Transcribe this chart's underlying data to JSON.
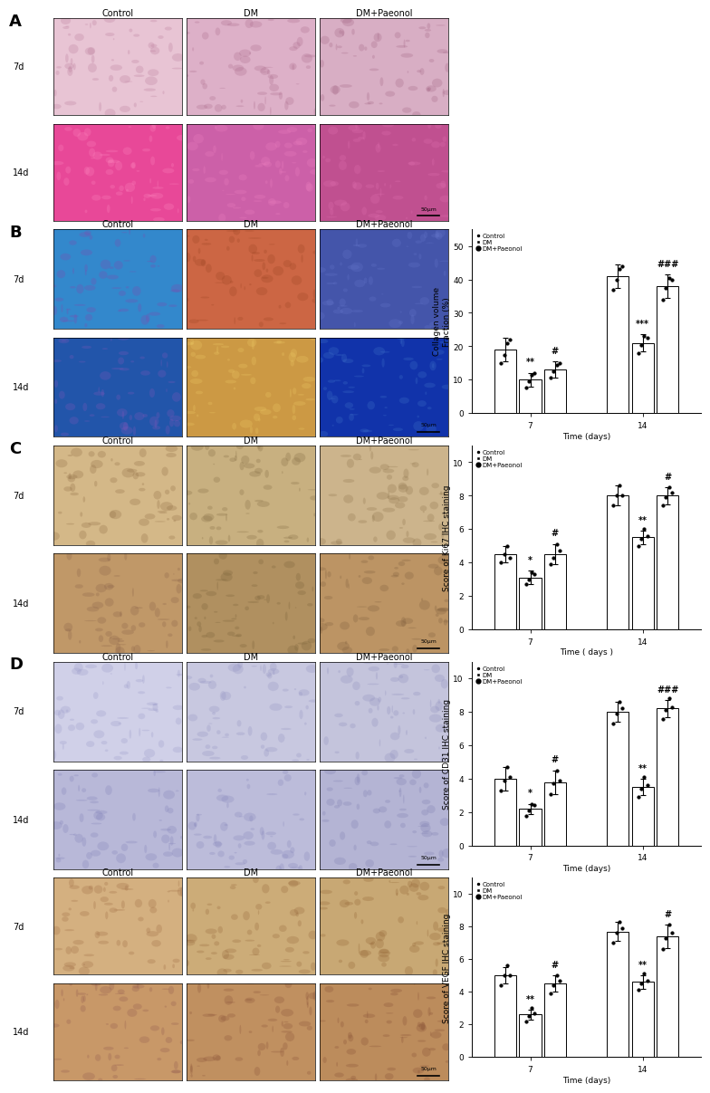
{
  "panel_labels": [
    "A",
    "B",
    "C",
    "D"
  ],
  "col_labels": [
    "Control",
    "DM",
    "DM+Paeonol"
  ],
  "row_labels_7d": "7d",
  "row_labels_14d": "14d",
  "legend_labels": [
    "Control",
    "DM",
    "DM+Paeonol"
  ],
  "panel_B_chart": {
    "ylabel": "Collagen volume\nFraction (%)",
    "xlabel": "Time (days)",
    "xticks": [
      7,
      14
    ],
    "yticks": [
      0,
      10,
      20,
      30,
      40,
      50
    ],
    "ylim": [
      0,
      55
    ],
    "bar_width": 0.22,
    "groups": {
      "7d": {
        "Control": {
          "mean": 19.0,
          "sem": 3.5
        },
        "DM": {
          "mean": 10.0,
          "sem": 2.0
        },
        "DM+Paeonol": {
          "mean": 13.0,
          "sem": 2.5
        }
      },
      "14d": {
        "Control": {
          "mean": 41.0,
          "sem": 3.5
        },
        "DM": {
          "mean": 21.0,
          "sem": 2.5
        },
        "DM+Paeonol": {
          "mean": 38.0,
          "sem": 3.5
        }
      }
    },
    "significance_7d": {
      "DM": "**",
      "DM+Paeonol": "#"
    },
    "significance_14d": {
      "DM": "***",
      "DM+Paeonol": "###"
    },
    "scatter_7d": {
      "Control": [
        15.0,
        17.5,
        21.0,
        22.0
      ],
      "DM": [
        7.5,
        9.5,
        11.5,
        12.0
      ],
      "DM+Paeonol": [
        10.5,
        12.5,
        14.5,
        15.0
      ]
    },
    "scatter_14d": {
      "Control": [
        37.0,
        40.0,
        43.0,
        44.0
      ],
      "DM": [
        18.0,
        20.5,
        23.0,
        22.5
      ],
      "DM+Paeonol": [
        34.0,
        37.5,
        40.5,
        40.0
      ]
    }
  },
  "panel_C_chart": {
    "ylabel": "Score of Ki67 IHC staining",
    "xlabel": "Time ( days )",
    "xticks": [
      7,
      14
    ],
    "yticks": [
      0,
      2,
      4,
      6,
      8,
      10
    ],
    "ylim": [
      0,
      11
    ],
    "bar_width": 0.22,
    "groups": {
      "7d": {
        "Control": {
          "mean": 4.5,
          "sem": 0.5
        },
        "DM": {
          "mean": 3.1,
          "sem": 0.4
        },
        "DM+Paeonol": {
          "mean": 4.5,
          "sem": 0.6
        }
      },
      "14d": {
        "Control": {
          "mean": 8.0,
          "sem": 0.6
        },
        "DM": {
          "mean": 5.5,
          "sem": 0.4
        },
        "DM+Paeonol": {
          "mean": 8.0,
          "sem": 0.5
        }
      }
    },
    "significance_7d": {
      "DM": "*",
      "DM+Paeonol": "#"
    },
    "significance_14d": {
      "DM": "**",
      "DM+Paeonol": "#"
    },
    "scatter_7d": {
      "Control": [
        4.0,
        4.5,
        5.0,
        4.3
      ],
      "DM": [
        2.7,
        3.0,
        3.4,
        3.3
      ],
      "DM+Paeonol": [
        3.9,
        4.3,
        5.1,
        4.7
      ]
    },
    "scatter_14d": {
      "Control": [
        7.4,
        8.0,
        8.6,
        8.0
      ],
      "DM": [
        5.0,
        5.4,
        6.0,
        5.6
      ],
      "DM+Paeonol": [
        7.4,
        7.9,
        8.5,
        8.2
      ]
    }
  },
  "panel_D1_chart": {
    "ylabel": "Score of CD31 IHC staining",
    "xlabel": "Time (days)",
    "xticks": [
      7,
      14
    ],
    "yticks": [
      0,
      2,
      4,
      6,
      8,
      10
    ],
    "ylim": [
      0,
      11
    ],
    "bar_width": 0.22,
    "groups": {
      "7d": {
        "Control": {
          "mean": 4.0,
          "sem": 0.7
        },
        "DM": {
          "mean": 2.2,
          "sem": 0.3
        },
        "DM+Paeonol": {
          "mean": 3.8,
          "sem": 0.7
        }
      },
      "14d": {
        "Control": {
          "mean": 8.0,
          "sem": 0.6
        },
        "DM": {
          "mean": 3.5,
          "sem": 0.5
        },
        "DM+Paeonol": {
          "mean": 8.2,
          "sem": 0.5
        }
      }
    },
    "significance_7d": {
      "DM": "*",
      "DM+Paeonol": "#"
    },
    "significance_14d": {
      "DM": "**",
      "DM+Paeonol": "###"
    },
    "scatter_7d": {
      "Control": [
        3.3,
        3.9,
        4.7,
        4.1
      ],
      "DM": [
        1.8,
        2.1,
        2.5,
        2.4
      ],
      "DM+Paeonol": [
        3.1,
        3.7,
        4.5,
        3.9
      ]
    },
    "scatter_14d": {
      "Control": [
        7.3,
        7.9,
        8.6,
        8.2
      ],
      "DM": [
        2.9,
        3.4,
        4.1,
        3.6
      ],
      "DM+Paeonol": [
        7.6,
        8.1,
        8.8,
        8.3
      ]
    }
  },
  "panel_D2_chart": {
    "ylabel": "Score of VEGF IHC staining",
    "xlabel": "Time (days)",
    "xticks": [
      7,
      14
    ],
    "yticks": [
      0,
      2,
      4,
      6,
      8,
      10
    ],
    "ylim": [
      0,
      11
    ],
    "bar_width": 0.22,
    "groups": {
      "7d": {
        "Control": {
          "mean": 5.0,
          "sem": 0.5
        },
        "DM": {
          "mean": 2.6,
          "sem": 0.3
        },
        "DM+Paeonol": {
          "mean": 4.5,
          "sem": 0.5
        }
      },
      "14d": {
        "Control": {
          "mean": 7.7,
          "sem": 0.6
        },
        "DM": {
          "mean": 4.6,
          "sem": 0.4
        },
        "DM+Paeonol": {
          "mean": 7.4,
          "sem": 0.7
        }
      }
    },
    "significance_7d": {
      "DM": "**",
      "DM+Paeonol": "#"
    },
    "significance_14d": {
      "DM": "**",
      "DM+Paeonol": "#"
    },
    "scatter_7d": {
      "Control": [
        4.4,
        5.0,
        5.6,
        5.0
      ],
      "DM": [
        2.2,
        2.5,
        3.0,
        2.7
      ],
      "DM+Paeonol": [
        3.9,
        4.4,
        5.0,
        4.7
      ]
    },
    "scatter_14d": {
      "Control": [
        7.0,
        7.6,
        8.3,
        7.9
      ],
      "DM": [
        4.1,
        4.5,
        5.1,
        4.7
      ],
      "DM+Paeonol": [
        6.6,
        7.3,
        8.1,
        7.6
      ]
    }
  },
  "bar_color": "#ffffff",
  "bar_edgecolor": "#000000",
  "bg_color": "#ffffff",
  "A_colors_7d": [
    [
      "#e8c4d4",
      "#b87898"
    ],
    [
      "#ddb0c8",
      "#a86888"
    ],
    [
      "#d8aec4",
      "#a06080"
    ]
  ],
  "A_colors_14d": [
    [
      "#e84898",
      "#ff88c0"
    ],
    [
      "#cc60a8",
      "#ee80c0"
    ],
    [
      "#c05090",
      "#e070b0"
    ]
  ],
  "B_colors_7d": [
    [
      "#3388cc",
      "#8844aa"
    ],
    [
      "#cc6644",
      "#994422"
    ],
    [
      "#4455aa",
      "#6677cc"
    ]
  ],
  "B_colors_14d": [
    [
      "#2255aa",
      "#8855bb"
    ],
    [
      "#cc9944",
      "#eecc66"
    ],
    [
      "#1133aa",
      "#4477cc"
    ]
  ],
  "C_colors_7d": [
    [
      "#d4b888",
      "#8c6840"
    ],
    [
      "#c8b080",
      "#806840"
    ],
    [
      "#ccb48c",
      "#8a7048"
    ]
  ],
  "C_colors_14d": [
    [
      "#c09868",
      "#886048"
    ],
    [
      "#b09060",
      "#786038"
    ],
    [
      "#bc9464",
      "#7c5c3c"
    ]
  ],
  "D1_colors_7d": [
    [
      "#d0d0e8",
      "#9898c8"
    ],
    [
      "#c8c8e0",
      "#9090c0"
    ],
    [
      "#c4c4dc",
      "#8c8cbc"
    ]
  ],
  "D1_colors_14d": [
    [
      "#b8b8d8",
      "#8080b8"
    ],
    [
      "#bcbcda",
      "#8484ba"
    ],
    [
      "#b4b4d4",
      "#7c7cb0"
    ]
  ],
  "D2_colors_7d": [
    [
      "#d4b080",
      "#9c6840"
    ],
    [
      "#ccac78",
      "#946438"
    ],
    [
      "#c8a874",
      "#906030"
    ]
  ],
  "D2_colors_14d": [
    [
      "#c89868",
      "#905850"
    ],
    [
      "#c09060",
      "#885038"
    ],
    [
      "#bc8c5c",
      "#844c34"
    ]
  ]
}
